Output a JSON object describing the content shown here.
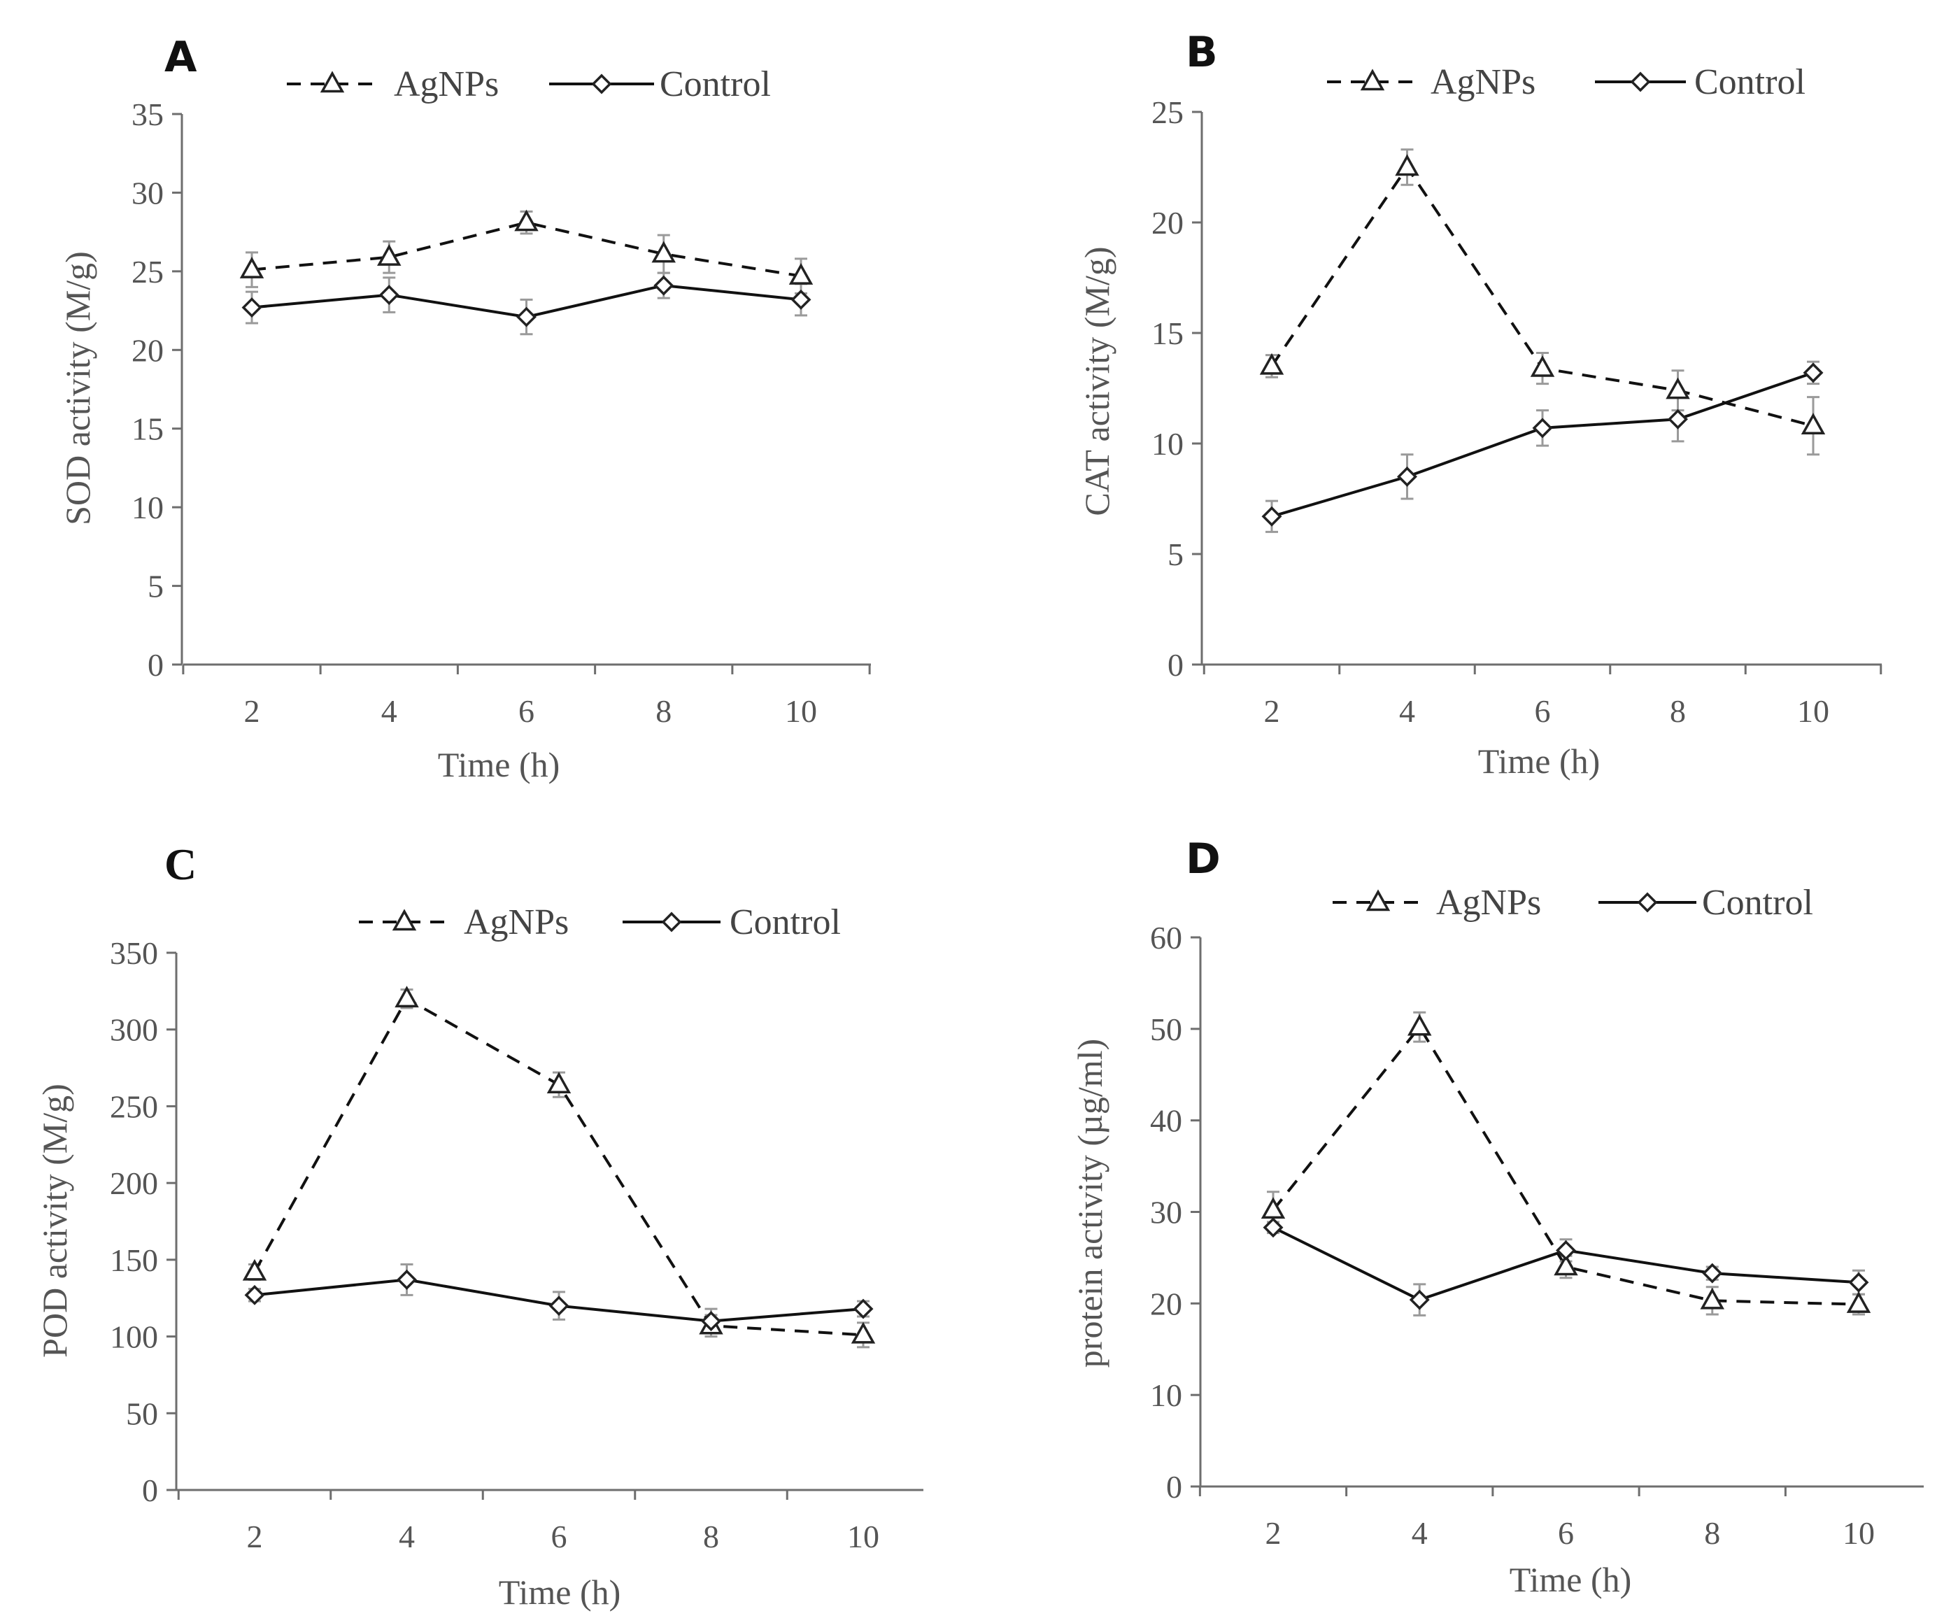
{
  "figure": {
    "legend_labels": {
      "agnps": "AgNPs",
      "control": "Control"
    },
    "colors": {
      "line": "#111111",
      "axis": "#6e6e6e",
      "error_bar": "#9a9a9a",
      "text": "#555555"
    }
  },
  "chart_data": [
    {
      "panel": "A",
      "type": "line",
      "title": "",
      "xlabel": "Time (h)",
      "ylabel": "SOD activity (M/g)",
      "x": [
        2,
        4,
        6,
        8,
        10
      ],
      "xticks": [
        "2",
        "4",
        "6",
        "8",
        "10"
      ],
      "ylim": [
        0,
        35
      ],
      "yticks": [
        "0",
        "5",
        "10",
        "15",
        "20",
        "25",
        "30",
        "35"
      ],
      "ystep": 5,
      "legend": "top",
      "series": [
        {
          "name": "AgNPs",
          "marker": "triangle",
          "style": "dashed",
          "values": [
            25.1,
            25.9,
            28.1,
            26.1,
            24.7
          ],
          "errors": [
            1.1,
            1.0,
            0.7,
            1.2,
            1.1
          ]
        },
        {
          "name": "Control",
          "marker": "diamond",
          "style": "solid",
          "values": [
            22.7,
            23.5,
            22.1,
            24.1,
            23.2
          ],
          "errors": [
            1.0,
            1.1,
            1.1,
            0.8,
            1.0
          ]
        }
      ]
    },
    {
      "panel": "B",
      "type": "line",
      "title": "",
      "xlabel": "Time (h)",
      "ylabel": "CAT activity (M/g)",
      "x": [
        2,
        4,
        6,
        8,
        10
      ],
      "xticks": [
        "2",
        "4",
        "6",
        "8",
        "10"
      ],
      "ylim": [
        0,
        25
      ],
      "yticks": [
        "0",
        "5",
        "10",
        "15",
        "20",
        "25"
      ],
      "ystep": 5,
      "legend": "top",
      "series": [
        {
          "name": "AgNPs",
          "marker": "triangle",
          "style": "dashed",
          "values": [
            13.5,
            22.5,
            13.4,
            12.4,
            10.8
          ],
          "errors": [
            0.5,
            0.8,
            0.7,
            0.9,
            1.3
          ]
        },
        {
          "name": "Control",
          "marker": "diamond",
          "style": "solid",
          "values": [
            6.7,
            8.5,
            10.7,
            11.1,
            13.2
          ],
          "errors": [
            0.7,
            1.0,
            0.8,
            1.0,
            0.5
          ]
        }
      ]
    },
    {
      "panel": "C",
      "type": "line",
      "title": "",
      "xlabel": "Time (h)",
      "ylabel": "POD activity (M/g)",
      "x": [
        2,
        4,
        6,
        8,
        10
      ],
      "xticks": [
        "2",
        "4",
        "6",
        "8",
        "10"
      ],
      "ylim": [
        0,
        350
      ],
      "yticks": [
        "0",
        "50",
        "100",
        "150",
        "200",
        "250",
        "300",
        "350"
      ],
      "ystep": 50,
      "legend": "top",
      "series": [
        {
          "name": "AgNPs",
          "marker": "triangle",
          "style": "dashed",
          "values": [
            142,
            320,
            264,
            107,
            101
          ],
          "errors": [
            5,
            6,
            8,
            7,
            8
          ]
        },
        {
          "name": "Control",
          "marker": "diamond",
          "style": "solid",
          "values": [
            127,
            137,
            120,
            110,
            118
          ],
          "errors": [
            4,
            10,
            9,
            8,
            5
          ]
        }
      ]
    },
    {
      "panel": "D",
      "type": "line",
      "title": "",
      "xlabel": "Time (h)",
      "ylabel": "protein activity (µg/ml)",
      "x": [
        2,
        4,
        6,
        8,
        10
      ],
      "xticks": [
        "2",
        "4",
        "6",
        "8",
        "10"
      ],
      "ylim": [
        0,
        60
      ],
      "yticks": [
        "0",
        "10",
        "20",
        "30",
        "40",
        "50",
        "60"
      ],
      "ystep": 10,
      "legend": "top",
      "series": [
        {
          "name": "AgNPs",
          "marker": "triangle",
          "style": "dashed",
          "values": [
            30.2,
            50.2,
            24.0,
            20.3,
            19.9
          ],
          "errors": [
            2.0,
            1.6,
            1.2,
            1.5,
            1.1
          ]
        },
        {
          "name": "Control",
          "marker": "diamond",
          "style": "solid",
          "values": [
            28.3,
            20.4,
            25.8,
            23.3,
            22.3
          ],
          "errors": [
            0.6,
            1.7,
            1.2,
            0.7,
            1.3
          ]
        }
      ]
    }
  ]
}
